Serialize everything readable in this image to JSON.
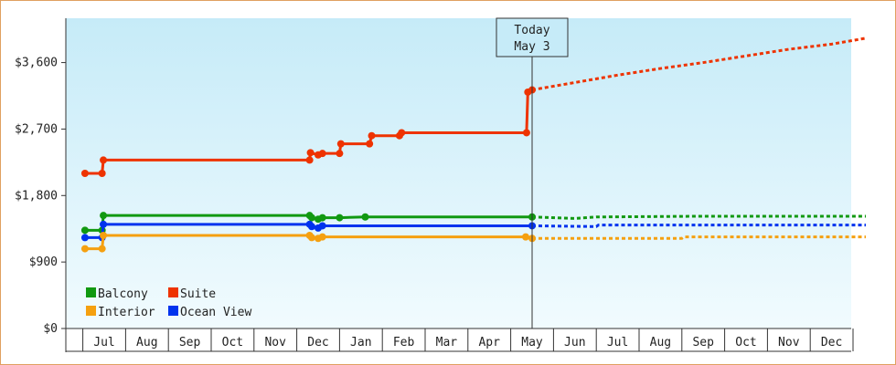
{
  "chart_data": {
    "type": "line",
    "y_ticks": [
      "$0",
      "$900",
      "$1,800",
      "$2,700",
      "$3,600"
    ],
    "ylim": [
      0,
      4200
    ],
    "months": [
      "Jul",
      "Aug",
      "Sep",
      "Oct",
      "Nov",
      "Dec",
      "Jan",
      "Feb",
      "Mar",
      "Apr",
      "May",
      "Jun",
      "Jul",
      "Aug",
      "Sep",
      "Oct",
      "Nov",
      "Dec"
    ],
    "today_marker": {
      "line1": "Today",
      "line2": "May 3",
      "t": 10.0
    },
    "colors": {
      "Balcony": "#119911",
      "Suite": "#ee3300",
      "Interior": "#f5a010",
      "Ocean View": "#0033ee"
    },
    "legend_position": "bottom-left",
    "legend": [
      "Balcony",
      "Suite",
      "Interior",
      "Ocean View"
    ],
    "series": [
      {
        "name": "Suite",
        "history": [
          [
            -0.45,
            2100
          ],
          [
            -0.05,
            2100
          ],
          [
            -0.02,
            2280
          ],
          [
            4.8,
            2280
          ],
          [
            4.82,
            2380
          ],
          [
            5.0,
            2350
          ],
          [
            5.1,
            2370
          ],
          [
            5.5,
            2370
          ],
          [
            5.53,
            2500
          ],
          [
            6.2,
            2500
          ],
          [
            6.25,
            2610
          ],
          [
            6.9,
            2610
          ],
          [
            6.95,
            2650
          ],
          [
            9.85,
            2650
          ],
          [
            9.87,
            2650
          ],
          [
            9.9,
            3200
          ],
          [
            10.0,
            3230
          ]
        ],
        "forecast": [
          [
            10.0,
            3230
          ],
          [
            11.0,
            3330
          ],
          [
            12.0,
            3430
          ],
          [
            13.0,
            3520
          ],
          [
            14.0,
            3600
          ],
          [
            15.0,
            3690
          ],
          [
            16.0,
            3780
          ],
          [
            17.0,
            3850
          ],
          [
            17.8,
            3930
          ]
        ]
      },
      {
        "name": "Balcony",
        "history": [
          [
            -0.45,
            1330
          ],
          [
            -0.05,
            1330
          ],
          [
            -0.02,
            1530
          ],
          [
            4.8,
            1530
          ],
          [
            4.85,
            1500
          ],
          [
            5.0,
            1480
          ],
          [
            5.1,
            1500
          ],
          [
            5.5,
            1500
          ],
          [
            6.1,
            1510
          ],
          [
            7.1,
            1510
          ],
          [
            9.85,
            1510
          ],
          [
            10.0,
            1510
          ]
        ],
        "forecast": [
          [
            10.0,
            1510
          ],
          [
            11.0,
            1490
          ],
          [
            11.5,
            1510
          ],
          [
            14.0,
            1520
          ],
          [
            17.8,
            1520
          ]
        ]
      },
      {
        "name": "Ocean View",
        "history": [
          [
            -0.45,
            1230
          ],
          [
            -0.05,
            1230
          ],
          [
            -0.02,
            1410
          ],
          [
            4.8,
            1410
          ],
          [
            4.85,
            1380
          ],
          [
            5.0,
            1360
          ],
          [
            5.1,
            1390
          ],
          [
            5.5,
            1390
          ],
          [
            6.1,
            1390
          ],
          [
            9.85,
            1390
          ],
          [
            10.0,
            1390
          ]
        ],
        "forecast": [
          [
            10.0,
            1390
          ],
          [
            11.5,
            1380
          ],
          [
            11.55,
            1400
          ],
          [
            17.8,
            1400
          ]
        ]
      },
      {
        "name": "Interior",
        "history": [
          [
            -0.45,
            1080
          ],
          [
            -0.05,
            1080
          ],
          [
            -0.02,
            1260
          ],
          [
            4.8,
            1260
          ],
          [
            4.85,
            1230
          ],
          [
            5.0,
            1220
          ],
          [
            5.1,
            1240
          ],
          [
            5.5,
            1240
          ],
          [
            6.1,
            1240
          ],
          [
            9.85,
            1240
          ],
          [
            10.0,
            1220
          ]
        ],
        "forecast": [
          [
            10.0,
            1220
          ],
          [
            13.5,
            1220
          ],
          [
            13.55,
            1240
          ],
          [
            17.8,
            1240
          ]
        ]
      }
    ]
  }
}
